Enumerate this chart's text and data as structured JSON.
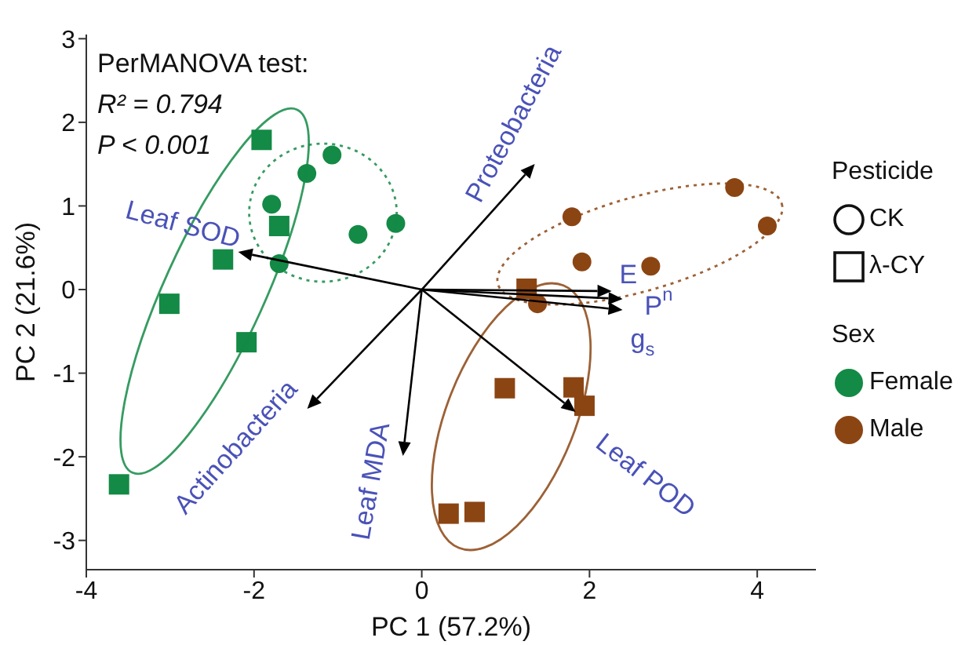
{
  "chart_data": {
    "type": "scatter",
    "xlabel": "PC 1 (57.2%)",
    "ylabel": "PC 2 (21.6%)",
    "xlim": [
      -4,
      4.7
    ],
    "xticks": [
      -4,
      -2,
      0,
      2,
      4
    ],
    "ylim": [
      -3.35,
      3.05
    ],
    "yticks": [
      -3,
      -2,
      -1,
      0,
      1,
      2,
      3
    ],
    "legend_title": "Pesticide",
    "annotations": [
      "PerMANOVA test:",
      "R² = 0.794",
      "P < 0.001",
      "CK",
      "λ-CY",
      "Sex",
      "Female",
      "Male",
      "Leaf SOD",
      "Actinobacteria",
      "Leaf MDA",
      "Proteobacteria",
      "E",
      "P$^{n}$",
      "g$_{s}$",
      "Leaf POD"
    ],
    "series": [
      {
        "marker": "circle",
        "color": "#138a45",
        "x": [
          -1.07,
          -1.37,
          -1.79,
          -0.76,
          -0.31,
          -1.7
        ],
        "values": [
          1.61,
          1.39,
          1.02,
          0.66,
          0.79,
          0.31
        ]
      },
      {
        "marker": "square",
        "color": "#138a45",
        "x": [
          -1.91,
          -1.7,
          -2.37,
          -3.01,
          -2.09,
          -3.61
        ],
        "values": [
          1.79,
          0.76,
          0.36,
          -0.17,
          -0.63,
          -2.33
        ]
      },
      {
        "marker": "circle",
        "color": "#8b4513",
        "x": [
          3.73,
          4.12,
          1.79,
          1.91,
          2.73,
          1.38
        ],
        "values": [
          1.22,
          0.76,
          0.87,
          0.33,
          0.28,
          -0.17
        ]
      },
      {
        "marker": "square",
        "color": "#8b4513",
        "x": [
          1.25,
          0.99,
          1.81,
          1.94,
          0.32,
          0.63
        ],
        "values": [
          0.01,
          -1.18,
          -1.17,
          -1.39,
          -2.68,
          -2.66
        ]
      }
    ]
  }
}
